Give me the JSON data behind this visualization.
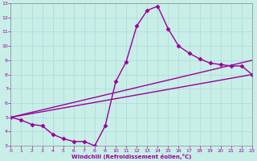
{
  "xlabel": "Windchill (Refroidissement éolien,°C)",
  "bg_color": "#c8eee8",
  "plot_bg_color": "#c8eee8",
  "line_color": "#990099",
  "grid_color": "#b0d8d4",
  "bottom_bar_color": "#6600aa",
  "xlim": [
    0,
    23
  ],
  "ylim": [
    3,
    13
  ],
  "xticks": [
    0,
    1,
    2,
    3,
    4,
    5,
    6,
    7,
    8,
    9,
    10,
    11,
    12,
    13,
    14,
    15,
    16,
    17,
    18,
    19,
    20,
    21,
    22,
    23
  ],
  "yticks": [
    3,
    4,
    5,
    6,
    7,
    8,
    9,
    10,
    11,
    12,
    13
  ],
  "curve1_x": [
    0,
    1,
    2,
    3,
    4,
    5,
    6,
    7,
    8,
    9,
    10,
    11,
    12,
    13,
    14,
    15,
    16,
    17,
    18,
    19,
    20,
    21,
    22,
    23
  ],
  "curve1_y": [
    5.0,
    4.8,
    4.5,
    4.4,
    3.8,
    3.5,
    3.3,
    3.3,
    3.0,
    4.4,
    7.5,
    8.9,
    11.4,
    12.5,
    12.8,
    11.2,
    10.0,
    9.5,
    9.1,
    8.8,
    8.7,
    8.6,
    8.6,
    8.0
  ],
  "curve2_x": [
    0,
    23
  ],
  "curve2_y": [
    5.0,
    9.0
  ],
  "curve3_x": [
    0,
    23
  ],
  "curve3_y": [
    5.0,
    8.0
  ],
  "marker": "D",
  "markersize": 2.5,
  "linewidth": 1.0
}
